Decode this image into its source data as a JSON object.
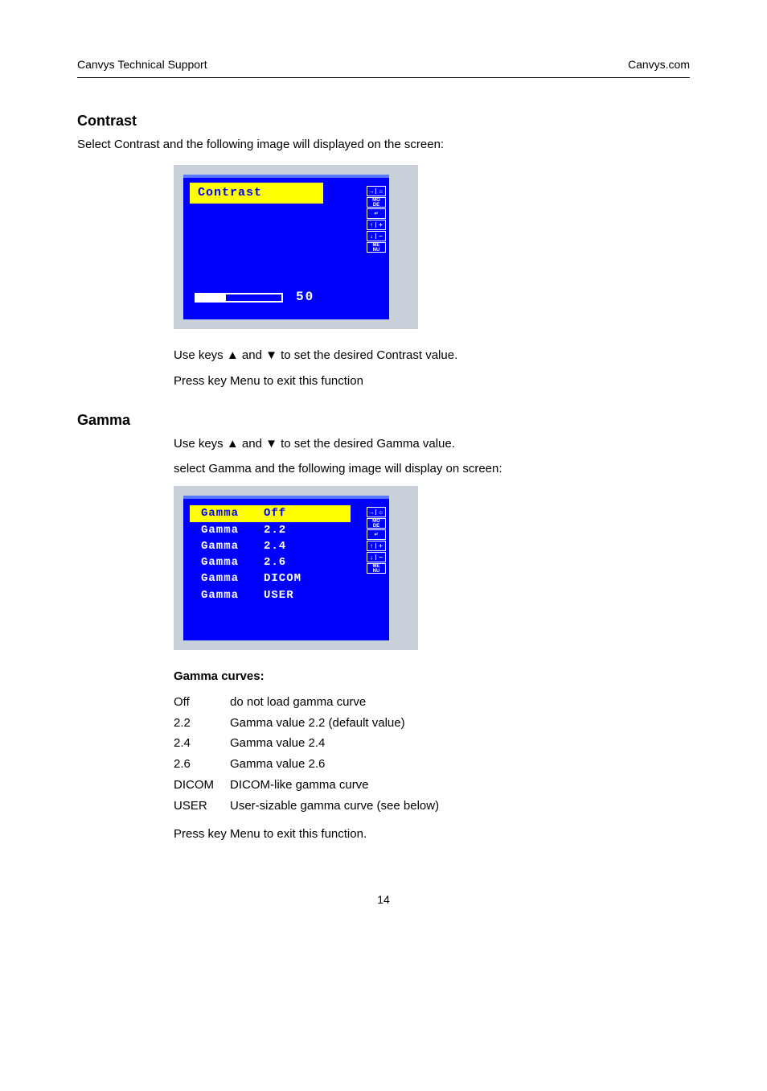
{
  "header": {
    "left": "Canvys Technical Support",
    "right": "Canvys.com"
  },
  "contrast": {
    "title": "Contrast",
    "intro": "Select Contrast and the following image will displayed on the screen:",
    "osd": {
      "label": "Contrast",
      "value": 50,
      "fill_percent": 35,
      "bg_color": "#0000ff",
      "highlight_bg": "#ffff00",
      "highlight_fg": "#0000ff",
      "text_color": "#ffffff",
      "panel_bg": "#c8d0da"
    },
    "instr1_prefix": "Use keys ",
    "instr1_up": "▲",
    "instr1_mid": " and ",
    "instr1_down": "▼",
    "instr1_suffix": " to set the desired Contrast value.",
    "instr2": "Press key Menu to exit this function"
  },
  "gamma": {
    "title": "Gamma",
    "intro1_prefix": "Use keys ",
    "intro1_up": "▲",
    "intro1_mid": " and ",
    "intro1_down": "▼",
    "intro1_suffix": " to set the desired Gamma value.",
    "intro2": "select Gamma and the following image will display on screen:",
    "items": [
      {
        "label": "Gamma",
        "value": "Off",
        "highlight": true
      },
      {
        "label": "Gamma",
        "value": "2.2",
        "highlight": false
      },
      {
        "label": "Gamma",
        "value": "2.4",
        "highlight": false
      },
      {
        "label": "Gamma",
        "value": "2.6",
        "highlight": false
      },
      {
        "label": "Gamma",
        "value": "DICOM",
        "highlight": false
      },
      {
        "label": "Gamma",
        "value": "USER",
        "highlight": false
      }
    ],
    "curves_title": "Gamma curves:",
    "curves": [
      {
        "label": "Off",
        "desc": "do not load gamma curve"
      },
      {
        "label": "2.2",
        "desc": "Gamma value 2.2 (default value)"
      },
      {
        "label": "2.4",
        "desc": "Gamma value 2.4"
      },
      {
        "label": "2.6",
        "desc": "Gamma value 2.6"
      },
      {
        "label": "DICOM",
        "desc": "DICOM-like gamma curve"
      },
      {
        "label": "USER",
        "desc": "User-sizable gamma curve (see below)"
      }
    ],
    "exit": "Press key Menu to exit this function."
  },
  "hints": [
    {
      "type": "split",
      "l": "→",
      "r": "☼"
    },
    {
      "type": "text",
      "t": "MO\nDE"
    },
    {
      "type": "text",
      "t": "↵"
    },
    {
      "type": "split",
      "l": "↑",
      "r": "+"
    },
    {
      "type": "split",
      "l": "↓",
      "r": "−"
    },
    {
      "type": "text",
      "t": "ME\nNU"
    }
  ],
  "page_number": "14"
}
